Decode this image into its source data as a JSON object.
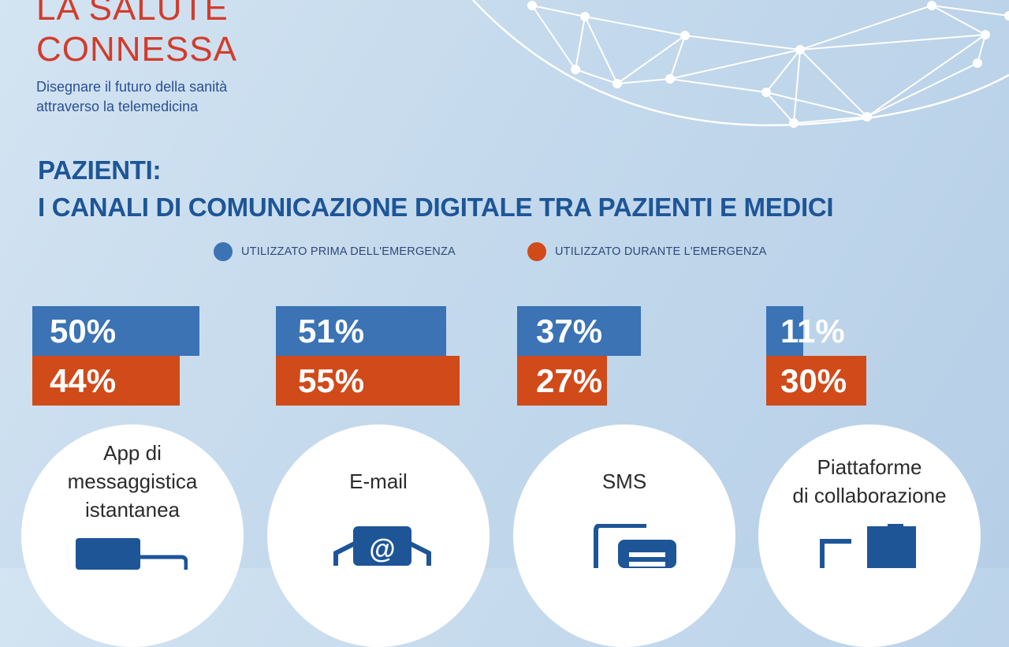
{
  "brand": {
    "title_line1": "LA SALUTE",
    "title_line2": "CONNESSA",
    "subtitle_line1": "Disegnare il futuro della sanità",
    "subtitle_line2": "attraverso la telemedicina"
  },
  "heading": {
    "line1": "PAZIENTI:",
    "line2": "I CANALI DI COMUNICAZIONE DIGITALE TRA PAZIENTI E MEDICI"
  },
  "colors": {
    "before": "#3b73b4",
    "during": "#d04a1a",
    "text_blue": "#1d5597"
  },
  "chart_data": {
    "type": "bar",
    "orientation": "horizontal",
    "title": "I CANALI DI COMUNICAZIONE DIGITALE TRA PAZIENTI E MEDICI",
    "legend_placement": "top",
    "categories": [
      "App di messaggistica istantanea",
      "E-mail",
      "SMS",
      "Piattaforme di collaborazione"
    ],
    "category_lines": [
      [
        "App di",
        "messaggistica",
        "istantanea"
      ],
      [
        "E-mail"
      ],
      [
        "SMS"
      ],
      [
        "Piattaforme",
        "di collaborazione"
      ]
    ],
    "series": [
      {
        "name": "UTILIZZATO PRIMA DELL'EMERGENZA",
        "values": [
          50,
          51,
          37,
          11
        ],
        "color": "#3b73b4"
      },
      {
        "name": "UTILIZZATO DURANTE L'EMERGENZA",
        "values": [
          44,
          55,
          27,
          30
        ],
        "color": "#d04a1a"
      }
    ],
    "value_labels": [
      [
        "50%",
        "51%",
        "37%",
        "11%"
      ],
      [
        "44%",
        "55%",
        "27%",
        "30%"
      ]
    ],
    "icons": [
      "chat-window-icon",
      "envelope-at-icon",
      "sms-documents-icon",
      "puzzle-icon"
    ],
    "unit": "%",
    "xlim": [
      0,
      100
    ],
    "grid": false
  }
}
